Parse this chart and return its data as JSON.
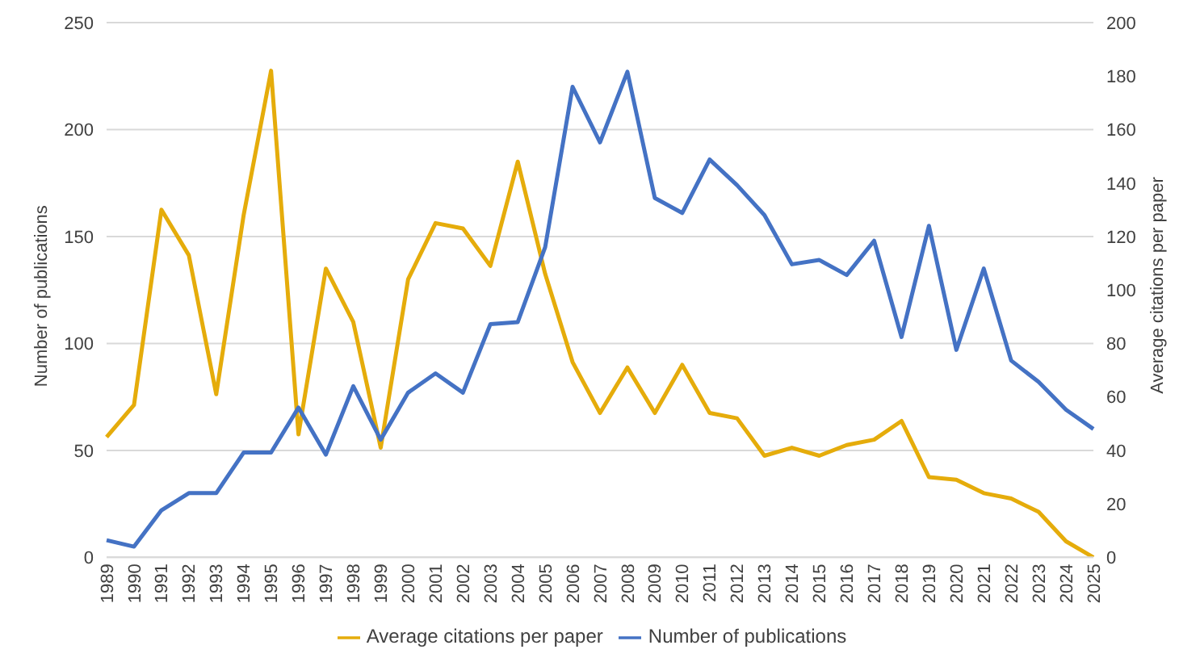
{
  "chart_data": {
    "type": "line",
    "categories": [
      "1989",
      "1990",
      "1991",
      "1992",
      "1993",
      "1994",
      "1995",
      "1996",
      "1997",
      "1998",
      "1999",
      "2000",
      "2001",
      "2002",
      "2003",
      "2004",
      "2005",
      "2006",
      "2007",
      "2008",
      "2009",
      "2010",
      "2011",
      "2012",
      "2013",
      "2014",
      "2015",
      "2016",
      "2017",
      "2018",
      "2019",
      "2020",
      "2021",
      "2022",
      "2023",
      "2024",
      "2025"
    ],
    "series": [
      {
        "name": "Average citations per paper",
        "color": "#e5ac0b",
        "axis": "y2",
        "values": [
          45,
          57,
          130,
          113,
          61,
          128,
          182,
          46,
          108,
          88,
          41,
          104,
          125,
          123,
          109,
          148,
          106,
          73,
          54,
          71,
          54,
          72,
          54,
          52,
          38,
          41,
          38,
          42,
          44,
          51,
          30,
          29,
          24,
          22,
          17,
          6,
          0
        ]
      },
      {
        "name": "Number of publications",
        "color": "#4472c4",
        "values": [
          8,
          5,
          22,
          30,
          30,
          49,
          49,
          70,
          48,
          80,
          55,
          77,
          86,
          77,
          109,
          110,
          145,
          220,
          194,
          227,
          168,
          161,
          186,
          174,
          160,
          137,
          139,
          132,
          148,
          103,
          155,
          97,
          135,
          92,
          82,
          69,
          60
        ]
      }
    ],
    "ylabel": "Number of publications",
    "y2label": "Average citations per paper",
    "ylim": [
      0,
      250
    ],
    "yticks": [
      0,
      50,
      100,
      150,
      200,
      250
    ],
    "y2lim": [
      0,
      200
    ],
    "y2ticks": [
      0,
      20,
      40,
      60,
      80,
      100,
      120,
      140,
      160,
      180,
      200
    ],
    "grid": "y",
    "legend": "bottom",
    "marker": "none",
    "line_style": "solid"
  }
}
